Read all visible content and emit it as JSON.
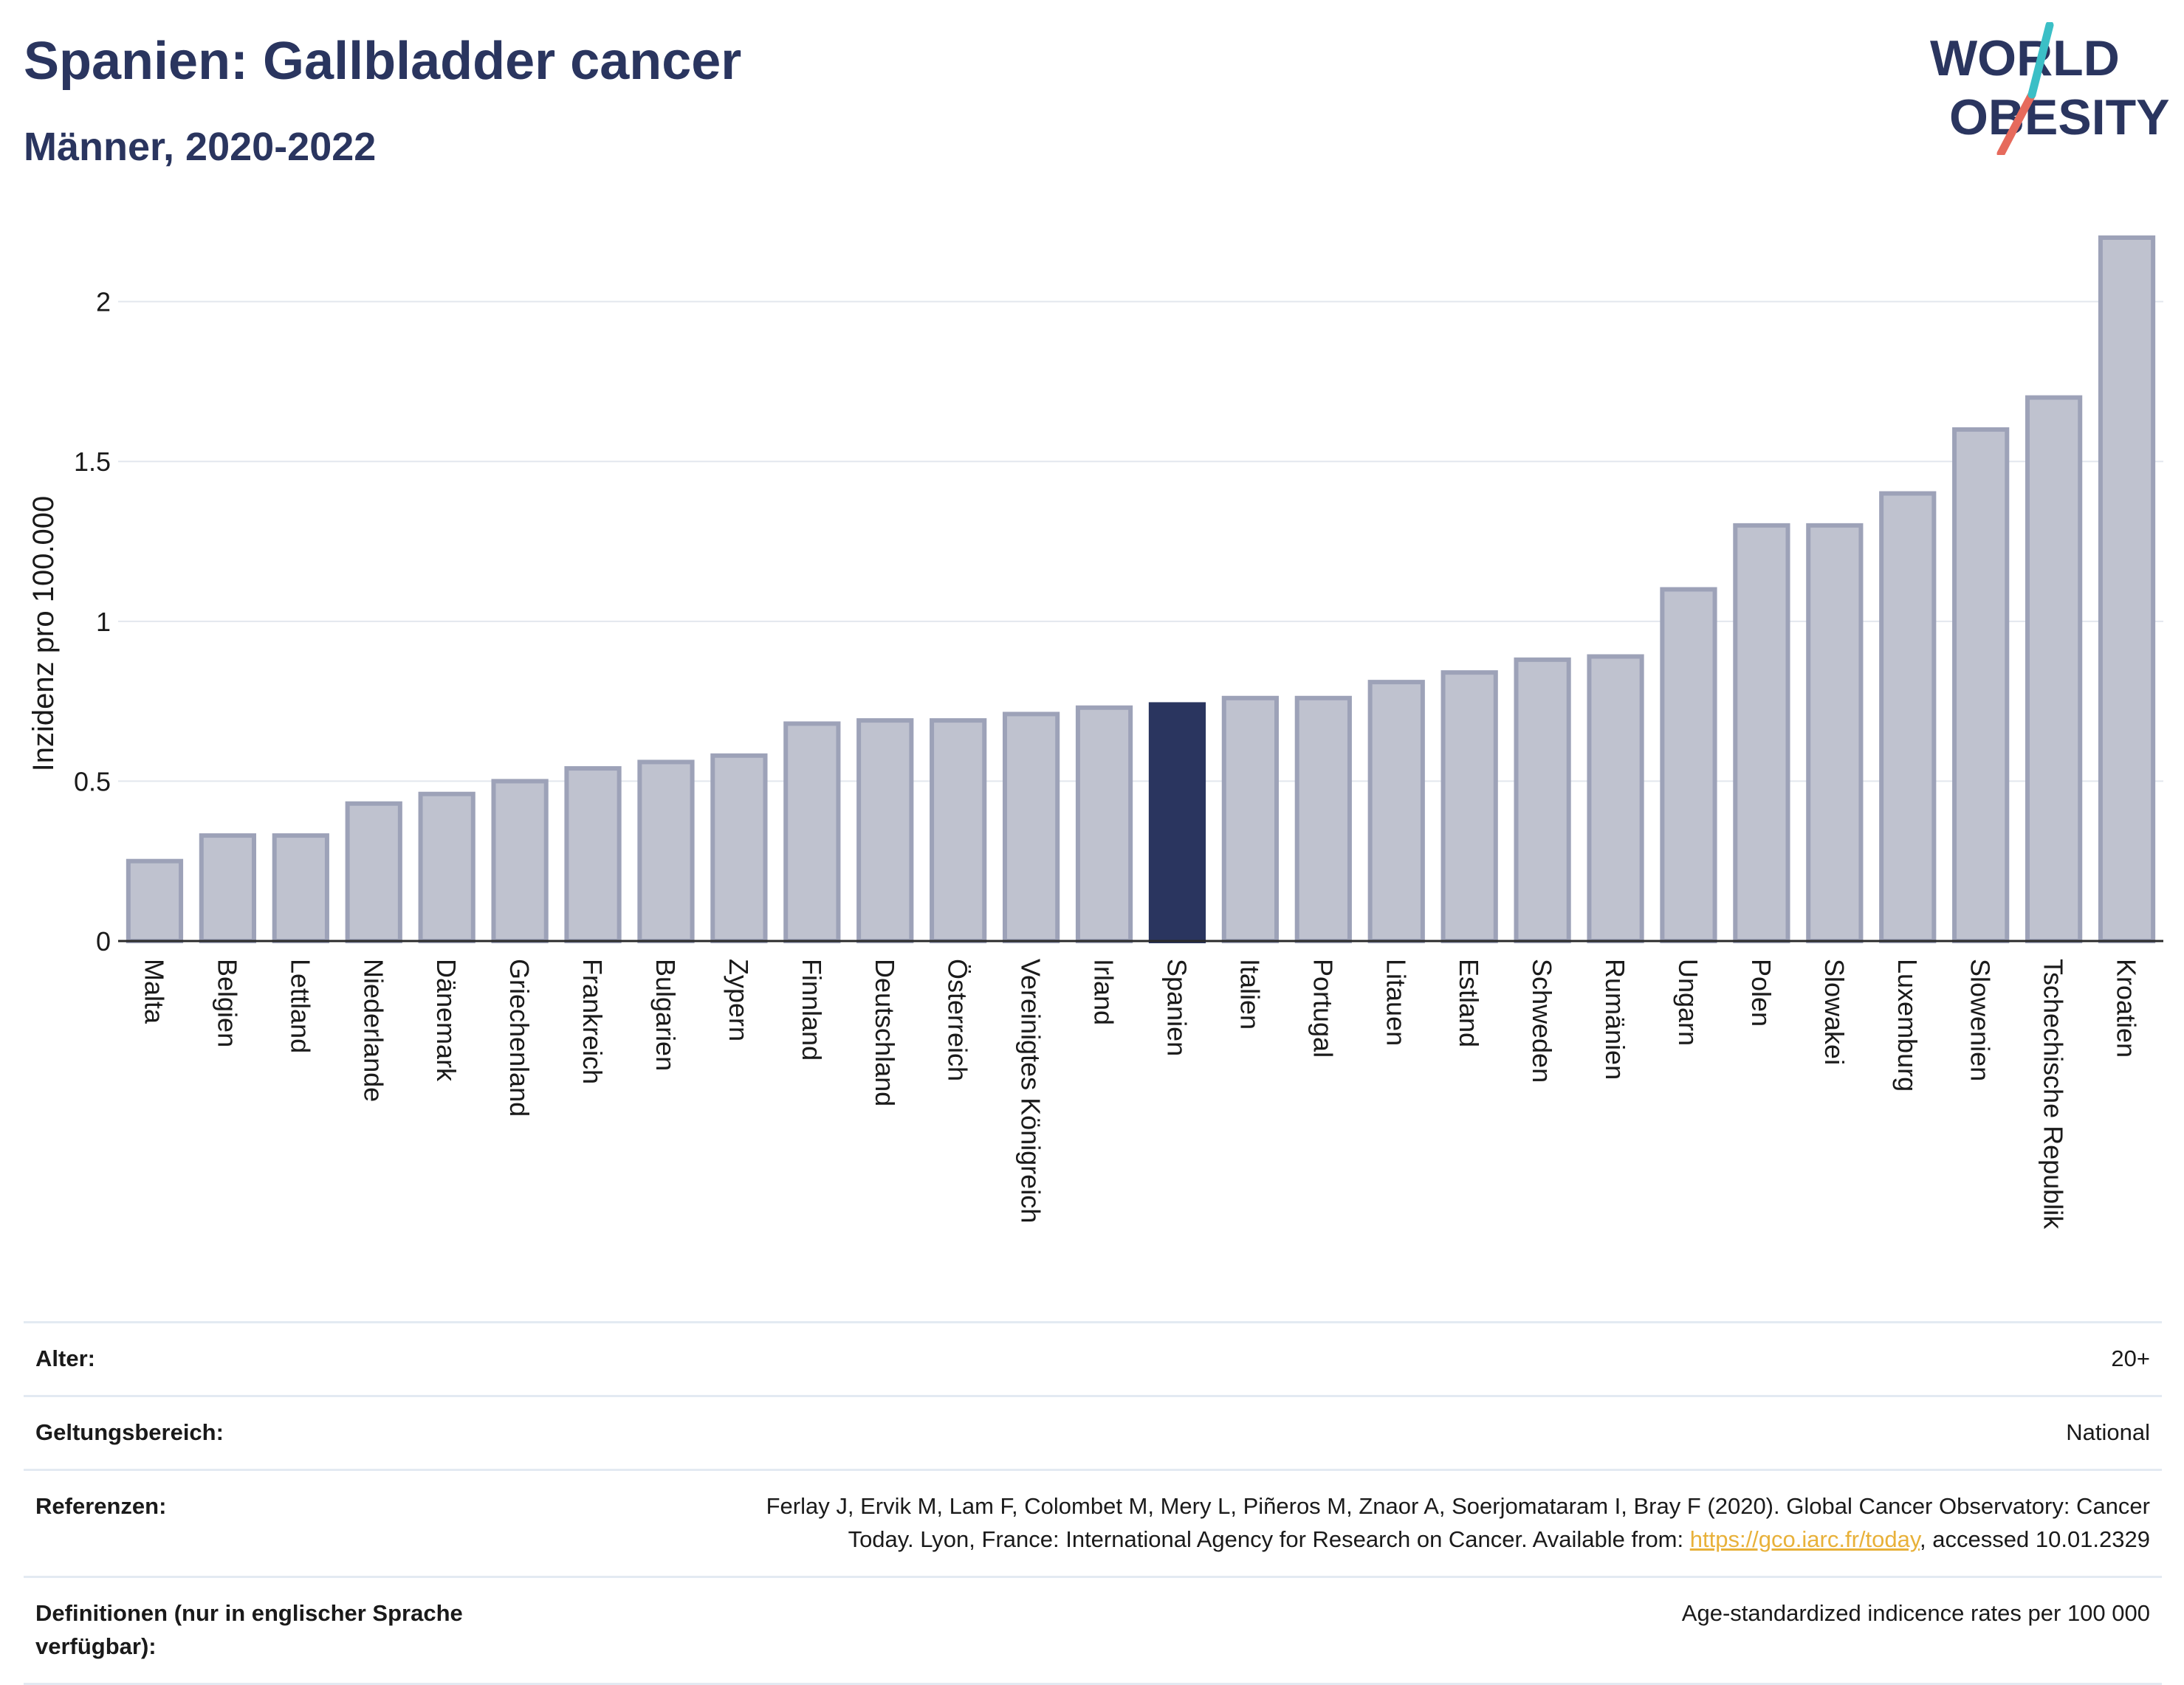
{
  "header": {
    "title": "Spanien: Gallbladder cancer",
    "subtitle": "Männer, 2020-2022"
  },
  "logo": {
    "line1": "WORLD",
    "line2": "OBESITY"
  },
  "colors": {
    "title": "#2a355f",
    "bar_default": "#bfc2cf",
    "bar_default_stroke": "#9da2b8",
    "bar_highlight": "#2a355f",
    "grid": "#e3e7ee",
    "logo_slash_red": "#e66a5c",
    "logo_slash_teal": "#3bbfc6",
    "link": "#e8b13a"
  },
  "chart_data": {
    "type": "bar",
    "title": "Spanien: Gallbladder cancer",
    "subtitle": "Männer, 2020-2022",
    "ylabel": "Inzidenz pro 100.000",
    "xlabel": "",
    "ylim": [
      0,
      2.2
    ],
    "yticks": [
      0,
      0.5,
      1,
      1.5,
      2
    ],
    "ytick_labels": [
      "0",
      "0.5",
      "1",
      "1.5",
      "2"
    ],
    "grid": true,
    "highlight": "Spanien",
    "categories": [
      "Malta",
      "Belgien",
      "Lettland",
      "Niederlande",
      "Dänemark",
      "Griechenland",
      "Frankreich",
      "Bulgarien",
      "Zypern",
      "Finnland",
      "Deutschland",
      "Österreich",
      "Vereinigtes Königreich",
      "Irland",
      "Spanien",
      "Italien",
      "Portugal",
      "Litauen",
      "Estland",
      "Schweden",
      "Rumänien",
      "Ungarn",
      "Polen",
      "Slowakei",
      "Luxemburg",
      "Slowenien",
      "Tschechische Republik",
      "Kroatien"
    ],
    "values": [
      0.25,
      0.33,
      0.33,
      0.43,
      0.46,
      0.5,
      0.54,
      0.56,
      0.58,
      0.68,
      0.69,
      0.69,
      0.71,
      0.73,
      0.74,
      0.76,
      0.76,
      0.81,
      0.84,
      0.88,
      0.89,
      1.1,
      1.3,
      1.3,
      1.4,
      1.6,
      1.7,
      2.2
    ]
  },
  "info_table": [
    {
      "label": "Alter:",
      "value": "20+"
    },
    {
      "label": "Geltungsbereich:",
      "value": "National"
    },
    {
      "label": "Referenzen:",
      "value_line1": "Ferlay J, Ervik M, Lam F, Colombet M, Mery L, Piñeros M, Znaor A, Soerjomataram I, Bray F (2020). Global Cancer Observatory: Cancer",
      "value_line2_pre": "Today. Lyon, France: International Agency for Research on Cancer. Available from: ",
      "link": "https://gco.iarc.fr/today",
      "value_line2_post": ", accessed 10.01.2329"
    },
    {
      "label": "Definitionen (nur in englischer Sprache verfügbar):",
      "value": "Age-standardized indicence rates per 100 000"
    }
  ]
}
